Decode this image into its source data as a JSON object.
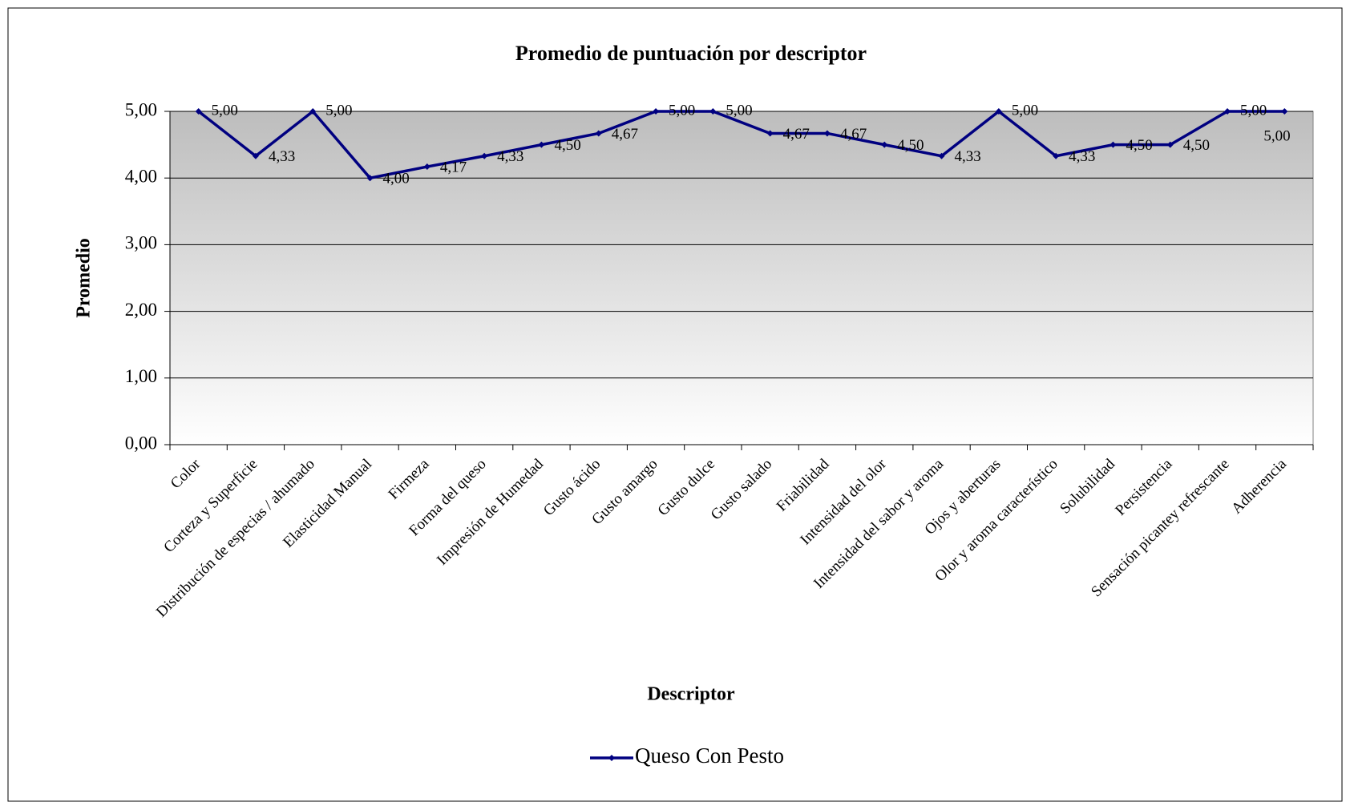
{
  "chart_data": {
    "type": "line",
    "title": "Promedio de puntuación por descriptor",
    "x_label": "Descriptor",
    "y_label": "Promedio",
    "categories": [
      "Color",
      "Corteza y Superficie",
      "Distribución de especias / ahumado",
      "Elasticidad Manual",
      "Firmeza",
      "Forma del queso",
      "Impresión de Humedad",
      "Gusto ácido",
      "Gusto amargo",
      "Gusto dulce",
      "Gusto salado",
      "Friabilidad",
      "Intensidad del olor",
      "Intensidad del sabor y aroma",
      "Ojos y aberturas",
      "Olor y aroma característico",
      "Solubilidad",
      "Persistencia",
      "Sensación picantey refrescante",
      "Adherencia"
    ],
    "series": [
      {
        "name": "Queso Con Pesto",
        "color": "#000080",
        "values": [
          5.0,
          4.33,
          5.0,
          4.0,
          4.17,
          4.33,
          4.5,
          4.67,
          5.0,
          5.0,
          4.67,
          4.67,
          4.5,
          4.33,
          5.0,
          4.33,
          4.5,
          4.5,
          5.0,
          5.0
        ],
        "value_labels": [
          "5,00",
          "4,33",
          "5,00",
          "4,00",
          "4,17",
          "4,33",
          "4,50",
          "4,67",
          "5,00",
          "5,00",
          "4,67",
          "4,67",
          "4,50",
          "4,33",
          "5,00",
          "4,33",
          "4,50",
          "4,50",
          "5,00",
          "5,00"
        ]
      }
    ],
    "ylim": [
      0,
      5
    ],
    "yticks": [
      {
        "value": 0,
        "label": "0,00"
      },
      {
        "value": 1,
        "label": "1,00"
      },
      {
        "value": 2,
        "label": "2,00"
      },
      {
        "value": 3,
        "label": "3,00"
      },
      {
        "value": 4,
        "label": "4,00"
      },
      {
        "value": 5,
        "label": "5,00"
      }
    ],
    "grid": true,
    "legend": "bottom"
  }
}
